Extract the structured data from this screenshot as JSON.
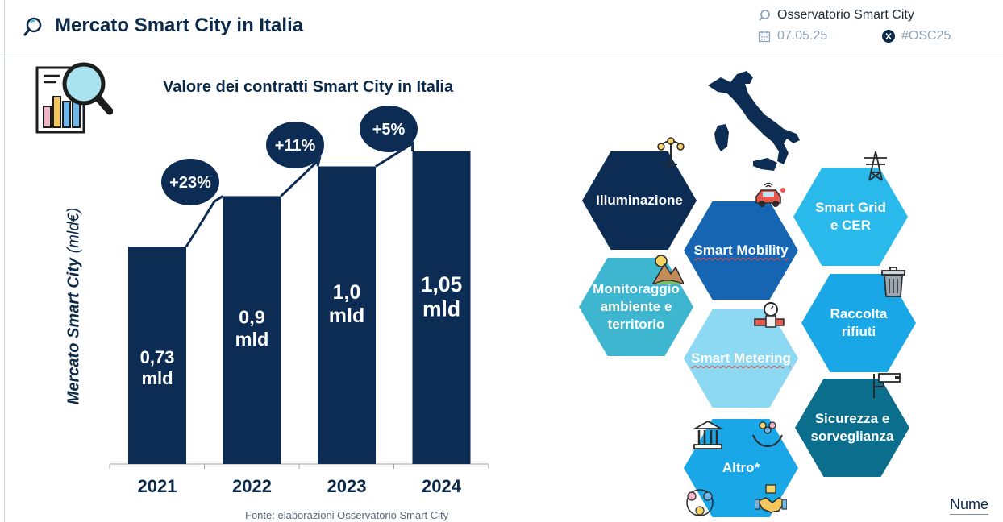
{
  "header": {
    "title": "Mercato Smart City in Italia",
    "organization": "Osservatorio Smart City",
    "date": "07.05.25",
    "hashtag": "#OSC25"
  },
  "chart_data": {
    "type": "bar",
    "title": "Valore dei contratti Smart City in Italia",
    "ylabel_bold": "Mercato Smart City",
    "ylabel_unit": "(mld€)",
    "categories": [
      "2021",
      "2022",
      "2023",
      "2024"
    ],
    "values": [
      0.73,
      0.9,
      1.0,
      1.05
    ],
    "data_labels": [
      "0,73\nmld",
      "0,9\nmld",
      "1,0\nmld",
      "1,05\nmld"
    ],
    "growth_labels": [
      "+23%",
      "+11%",
      "+5%"
    ],
    "ylim": [
      0,
      1.05
    ],
    "bar_color": "#0c2c53",
    "source": "Fonte: elaborazioni Osservatorio Smart City"
  },
  "segments": [
    {
      "label": "Illuminazione",
      "color": "#0c2c53",
      "icon": "street-lamp-icon"
    },
    {
      "label": "Smart Mobility",
      "color": "#1565b3",
      "icon": "connected-car-icon"
    },
    {
      "label": "Smart Grid\ne CER",
      "color": "#29b9ea",
      "icon": "power-pylon-icon"
    },
    {
      "label": "Monitoraggio\nambiente e\nterritorio",
      "color": "#3fb6cf",
      "icon": "landscape-icon"
    },
    {
      "label": "Smart Metering",
      "color": "#8dd9f3",
      "icon": "water-meter-icon"
    },
    {
      "label": "Raccolta\nrifiuti",
      "color": "#1aa7e8",
      "icon": "trash-bin-icon"
    },
    {
      "label": "Sicurezza e\nsorveglianza",
      "color": "#0a6e8c",
      "icon": "cctv-camera-icon"
    },
    {
      "label": "Altro*",
      "color": "#1aa7e8",
      "icon": "public-building-icon"
    }
  ],
  "corner_label": "Nume"
}
